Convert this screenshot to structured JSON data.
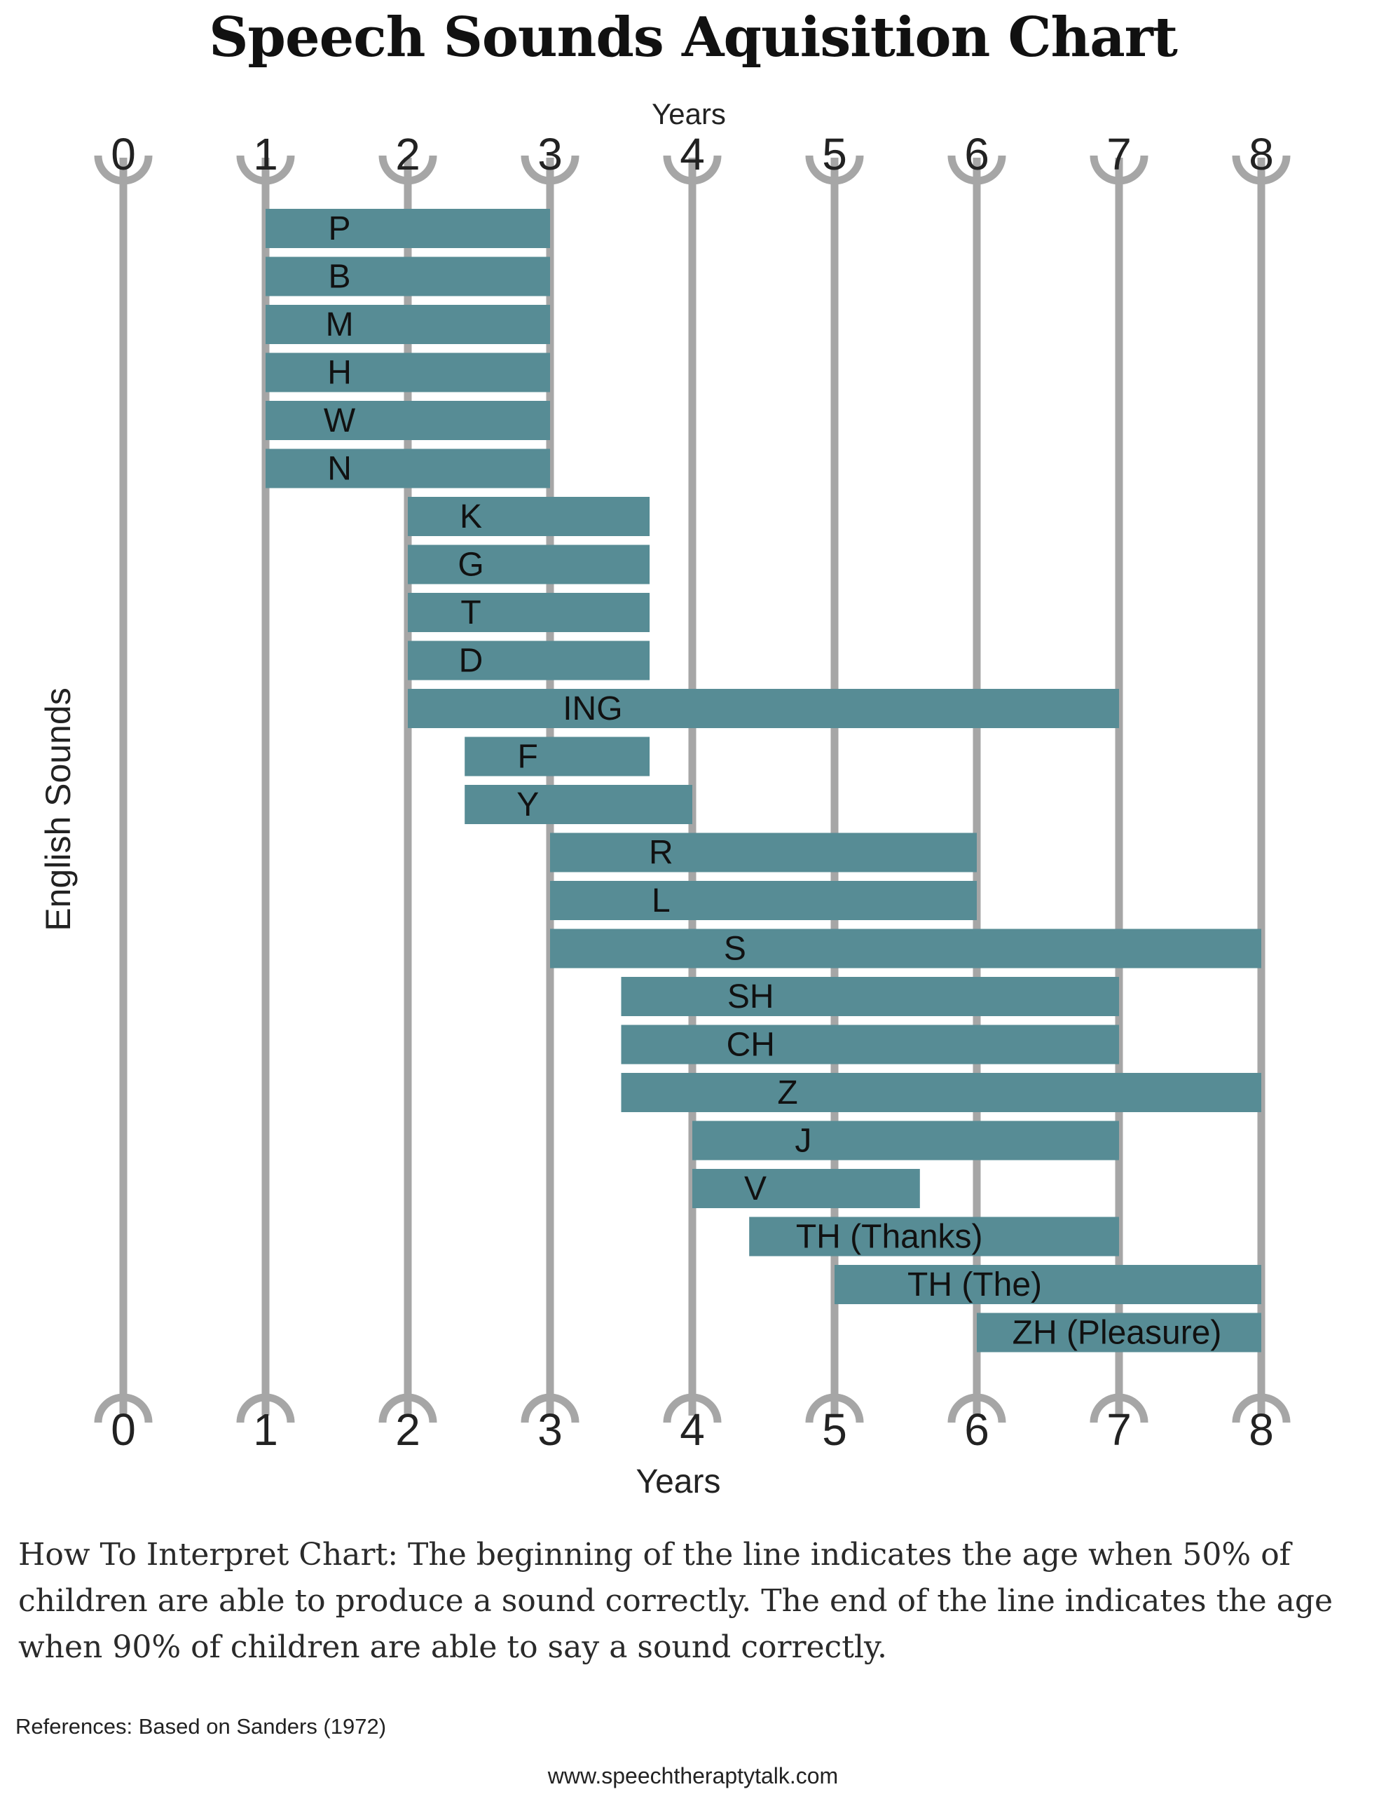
{
  "chart_data": {
    "type": "bar",
    "title": "Speech Sounds Aquisition Chart",
    "xlabel_top": "Years",
    "xlabel_bottom": "Years",
    "ylabel": "English Sounds",
    "xlim": [
      0,
      8
    ],
    "ticks": [
      "0",
      "1",
      "2",
      "3",
      "4",
      "5",
      "6",
      "7",
      "8"
    ],
    "colors": {
      "bar": "#578c95",
      "axis_line": "#a6a6a6",
      "text": "#222222"
    },
    "bars": [
      {
        "sound": "P",
        "start": 1.0,
        "end": 3.0
      },
      {
        "sound": "B",
        "start": 1.0,
        "end": 3.0
      },
      {
        "sound": "M",
        "start": 1.0,
        "end": 3.0
      },
      {
        "sound": "H",
        "start": 1.0,
        "end": 3.0
      },
      {
        "sound": "W",
        "start": 1.0,
        "end": 3.0
      },
      {
        "sound": "N",
        "start": 1.0,
        "end": 3.0
      },
      {
        "sound": "K",
        "start": 2.0,
        "end": 3.7
      },
      {
        "sound": "G",
        "start": 2.0,
        "end": 3.7
      },
      {
        "sound": "T",
        "start": 2.0,
        "end": 3.7
      },
      {
        "sound": "D",
        "start": 2.0,
        "end": 3.7
      },
      {
        "sound": "ING",
        "start": 2.0,
        "end": 7.0
      },
      {
        "sound": "F",
        "start": 2.4,
        "end": 3.7
      },
      {
        "sound": "Y",
        "start": 2.4,
        "end": 4.0
      },
      {
        "sound": "R",
        "start": 3.0,
        "end": 6.0
      },
      {
        "sound": "L",
        "start": 3.0,
        "end": 6.0
      },
      {
        "sound": "S",
        "start": 3.0,
        "end": 8.0
      },
      {
        "sound": "SH",
        "start": 3.5,
        "end": 7.0
      },
      {
        "sound": "CH",
        "start": 3.5,
        "end": 7.0
      },
      {
        "sound": "Z",
        "start": 3.5,
        "end": 8.0
      },
      {
        "sound": "J",
        "start": 4.0,
        "end": 7.0
      },
      {
        "sound": "V",
        "start": 4.0,
        "end": 5.6
      },
      {
        "sound": "TH (Thanks)",
        "start": 4.4,
        "end": 7.0
      },
      {
        "sound": "TH (The)",
        "start": 5.0,
        "end": 8.0
      },
      {
        "sound": "ZH (Pleasure)",
        "start": 6.0,
        "end": 8.0
      }
    ]
  },
  "footer": {
    "interpret": "How To Interpret Chart: The beginning of the line indicates the age when 50% of children are able to produce a sound correctly. The end of the line indicates the age when 90% of children are able to say a sound correctly.",
    "references": "References: Based on Sanders (1972)",
    "website": "www.speechtheraptytalk.com"
  }
}
